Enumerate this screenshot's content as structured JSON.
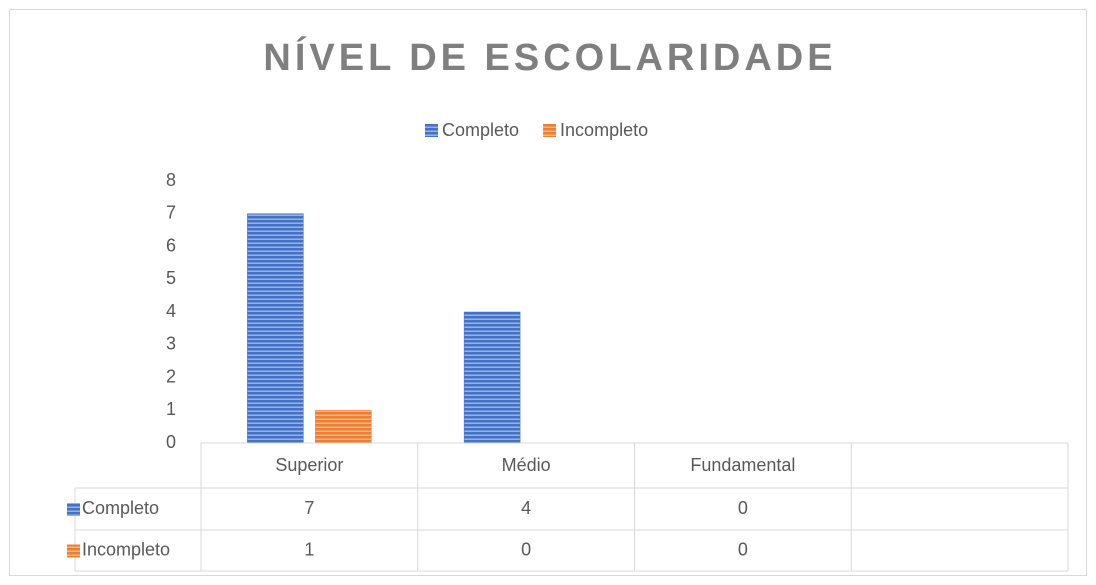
{
  "chart_data": {
    "type": "bar",
    "title": "NÍVEL DE ESCOLARIDADE",
    "categories": [
      "Superior",
      "Médio",
      "Fundamental",
      null
    ],
    "series": [
      {
        "name": "Completo",
        "color": "#4472c4",
        "values": [
          7,
          4,
          0,
          null
        ]
      },
      {
        "name": "Incompleto",
        "color": "#ed7d31",
        "values": [
          1,
          0,
          0,
          null
        ]
      }
    ],
    "ylim": [
      0,
      8
    ],
    "yticks": [
      0,
      1,
      2,
      3,
      4,
      5,
      6,
      7,
      8
    ],
    "grid": false,
    "legend": "top",
    "data_table": true
  }
}
